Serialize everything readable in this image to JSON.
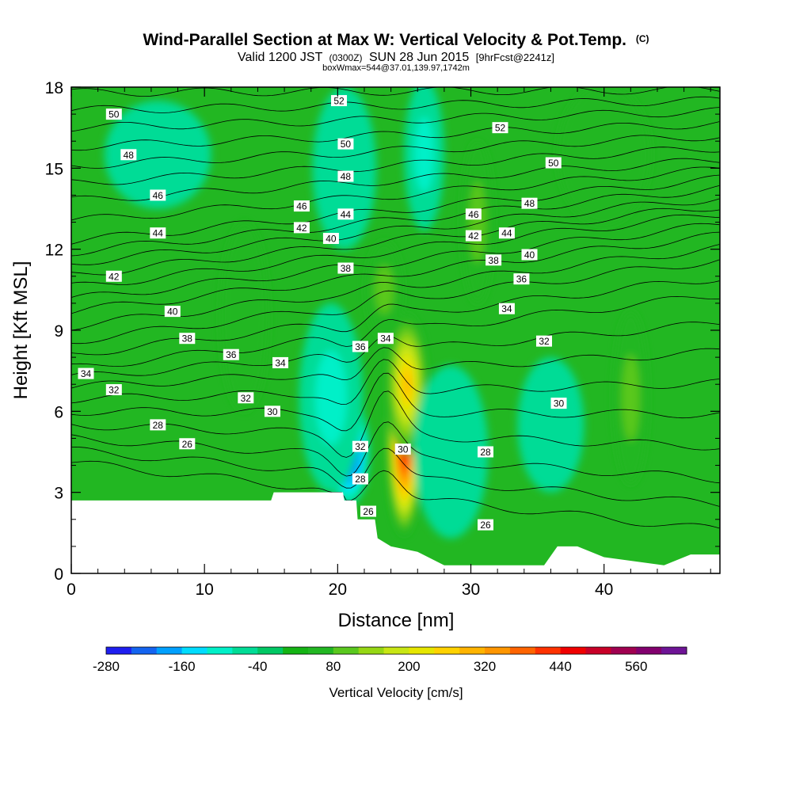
{
  "title": {
    "main": "Wind-Parallel Section at Max W: Vertical Velocity & Pot.Temp.",
    "mark": "(C)",
    "line2_a": "Valid 1200 JST",
    "line2_b": "(0300Z)",
    "line2_c": "SUN 28 Jun 2015",
    "line2_d": "[9hrFcst@2241z]",
    "line3": "boxWmax=544@37.01,139.97,1742m"
  },
  "colors": {
    "background_field": "#22b722",
    "terrain": "#ffffff",
    "contour": "#000000"
  },
  "chart_data": {
    "type": "heatmap",
    "xlabel": "Distance [nm]",
    "ylabel": "Height [Kft MSL]",
    "xlim": [
      0,
      48.7
    ],
    "ylim": [
      0,
      18
    ],
    "x_ticks": [
      "0",
      "10",
      "20",
      "30",
      "40"
    ],
    "x_tick_values": [
      0,
      10,
      20,
      30,
      40
    ],
    "y_ticks": [
      "0",
      "3",
      "6",
      "9",
      "12",
      "15",
      "18"
    ],
    "y_tick_values": [
      0,
      3,
      6,
      9,
      12,
      15,
      18
    ],
    "colorbar": {
      "title": "Vertical Velocity [cm/s]",
      "tick_labels": [
        "-280",
        "-160",
        "-40",
        "80",
        "200",
        "320",
        "440",
        "560"
      ],
      "colors": [
        "#1e1ef0",
        "#1464f0",
        "#00a0ff",
        "#00dcff",
        "#00f0c8",
        "#00dc96",
        "#00c864",
        "#14b414",
        "#22b722",
        "#5ac81e",
        "#96d714",
        "#c8e614",
        "#e6e600",
        "#ffd200",
        "#ffb400",
        "#ff9600",
        "#ff6400",
        "#ff3200",
        "#f00000",
        "#c80028",
        "#a00050",
        "#82006e",
        "#6e1496"
      ]
    },
    "velocity_features": [
      {
        "x": 25.0,
        "y": 5.0,
        "rx": 1.3,
        "ry": 3.6,
        "w": 500
      },
      {
        "x": 25.2,
        "y": 7.0,
        "rx": 1.5,
        "ry": 2.6,
        "w": 280
      },
      {
        "x": 20.8,
        "y": 4.5,
        "rx": 1.6,
        "ry": 2.0,
        "w": -270
      },
      {
        "x": 19.5,
        "y": 6.5,
        "rx": 2.4,
        "ry": 3.5,
        "w": -70
      },
      {
        "x": 28.5,
        "y": 4.3,
        "rx": 1.5,
        "ry": 1.9,
        "w": -130
      },
      {
        "x": 28.5,
        "y": 4.5,
        "rx": 2.8,
        "ry": 3.2,
        "w": -40
      },
      {
        "x": 42.0,
        "y": 6.5,
        "rx": 1.3,
        "ry": 3.2,
        "w": 90
      },
      {
        "x": 13.0,
        "y": 9.5,
        "rx": 1.8,
        "ry": 3.5,
        "w": 50
      },
      {
        "x": 20.5,
        "y": 15.0,
        "rx": 2.4,
        "ry": 3.0,
        "w": -40
      },
      {
        "x": 26.5,
        "y": 15.5,
        "rx": 1.5,
        "ry": 2.8,
        "w": -90
      },
      {
        "x": 30.5,
        "y": 13.0,
        "rx": 1.2,
        "ry": 3.0,
        "w": 60
      },
      {
        "x": 23.5,
        "y": 10.5,
        "rx": 1.4,
        "ry": 1.8,
        "w": 70
      },
      {
        "x": 40.0,
        "y": 15.5,
        "rx": 3.5,
        "ry": 2.6,
        "w": 50
      },
      {
        "x": 6.5,
        "y": 15.5,
        "rx": 4.0,
        "ry": 2.0,
        "w": -40
      },
      {
        "x": 36.0,
        "y": 5.5,
        "rx": 2.5,
        "ry": 2.5,
        "w": -40
      }
    ],
    "terrain": [
      [
        0,
        2.7
      ],
      [
        15,
        2.7
      ],
      [
        15.2,
        3.0
      ],
      [
        20.4,
        3.0
      ],
      [
        20.5,
        2.7
      ],
      [
        21.4,
        2.7
      ],
      [
        21.5,
        2.0
      ],
      [
        22.8,
        2.0
      ],
      [
        23.0,
        1.3
      ],
      [
        24.0,
        1.0
      ],
      [
        26.0,
        0.8
      ],
      [
        28.0,
        0.3
      ],
      [
        35.5,
        0.3
      ],
      [
        36.5,
        1.0
      ],
      [
        38.0,
        1.0
      ],
      [
        40.0,
        0.6
      ],
      [
        44.5,
        0.3
      ],
      [
        46.5,
        0.7
      ],
      [
        48.7,
        0.7
      ]
    ],
    "theta_contours": {
      "levels": [
        26,
        28,
        30,
        32,
        34,
        36,
        38,
        40,
        42,
        44,
        46,
        48,
        50,
        52
      ],
      "left_heights": [
        4.1,
        5.0,
        6.0,
        6.9,
        7.6,
        8.6,
        9.7,
        10.6,
        11.5,
        12.3,
        13.8,
        15.1,
        16.5,
        17.8
      ],
      "right_heights": [
        1.6,
        3.5,
        5.9,
        8.2,
        10.3,
        11.6,
        12.5,
        13.3,
        13.9,
        14.6,
        15.3,
        16.2,
        17.1,
        17.9
      ]
    },
    "contour_labels": [
      {
        "text": "50",
        "x": 3.2,
        "y": 17.0
      },
      {
        "text": "48",
        "x": 4.3,
        "y": 15.5
      },
      {
        "text": "46",
        "x": 6.5,
        "y": 14.0
      },
      {
        "text": "44",
        "x": 6.5,
        "y": 12.6
      },
      {
        "text": "42",
        "x": 3.2,
        "y": 11.0
      },
      {
        "text": "40",
        "x": 7.6,
        "y": 9.7
      },
      {
        "text": "38",
        "x": 8.7,
        "y": 8.7
      },
      {
        "text": "36",
        "x": 12.0,
        "y": 8.1
      },
      {
        "text": "34",
        "x": 1.1,
        "y": 7.4
      },
      {
        "text": "32",
        "x": 3.2,
        "y": 6.8
      },
      {
        "text": "32",
        "x": 13.1,
        "y": 6.5
      },
      {
        "text": "34",
        "x": 15.7,
        "y": 7.8
      },
      {
        "text": "30",
        "x": 15.1,
        "y": 6.0
      },
      {
        "text": "28",
        "x": 6.5,
        "y": 5.5
      },
      {
        "text": "26",
        "x": 8.7,
        "y": 4.8
      },
      {
        "text": "52",
        "x": 20.1,
        "y": 17.5
      },
      {
        "text": "50",
        "x": 20.6,
        "y": 15.9
      },
      {
        "text": "48",
        "x": 20.6,
        "y": 14.7
      },
      {
        "text": "46",
        "x": 17.3,
        "y": 13.6
      },
      {
        "text": "44",
        "x": 20.6,
        "y": 13.3
      },
      {
        "text": "42",
        "x": 17.3,
        "y": 12.8
      },
      {
        "text": "40",
        "x": 19.5,
        "y": 12.4
      },
      {
        "text": "38",
        "x": 20.6,
        "y": 11.3
      },
      {
        "text": "36",
        "x": 21.7,
        "y": 8.4
      },
      {
        "text": "34",
        "x": 23.6,
        "y": 8.7
      },
      {
        "text": "32",
        "x": 21.7,
        "y": 4.7
      },
      {
        "text": "28",
        "x": 21.7,
        "y": 3.5
      },
      {
        "text": "26",
        "x": 22.3,
        "y": 2.3
      },
      {
        "text": "30",
        "x": 24.9,
        "y": 4.6
      },
      {
        "text": "52",
        "x": 32.2,
        "y": 16.5
      },
      {
        "text": "50",
        "x": 36.2,
        "y": 15.2
      },
      {
        "text": "48",
        "x": 34.4,
        "y": 13.7
      },
      {
        "text": "46",
        "x": 30.2,
        "y": 13.3
      },
      {
        "text": "44",
        "x": 32.7,
        "y": 12.6
      },
      {
        "text": "42",
        "x": 30.2,
        "y": 12.5
      },
      {
        "text": "40",
        "x": 34.4,
        "y": 11.8
      },
      {
        "text": "38",
        "x": 31.7,
        "y": 11.6
      },
      {
        "text": "36",
        "x": 33.8,
        "y": 10.9
      },
      {
        "text": "34",
        "x": 32.7,
        "y": 9.8
      },
      {
        "text": "32",
        "x": 35.5,
        "y": 8.6
      },
      {
        "text": "30",
        "x": 36.6,
        "y": 6.3
      },
      {
        "text": "28",
        "x": 31.1,
        "y": 4.5
      },
      {
        "text": "26",
        "x": 31.1,
        "y": 1.8
      }
    ]
  }
}
